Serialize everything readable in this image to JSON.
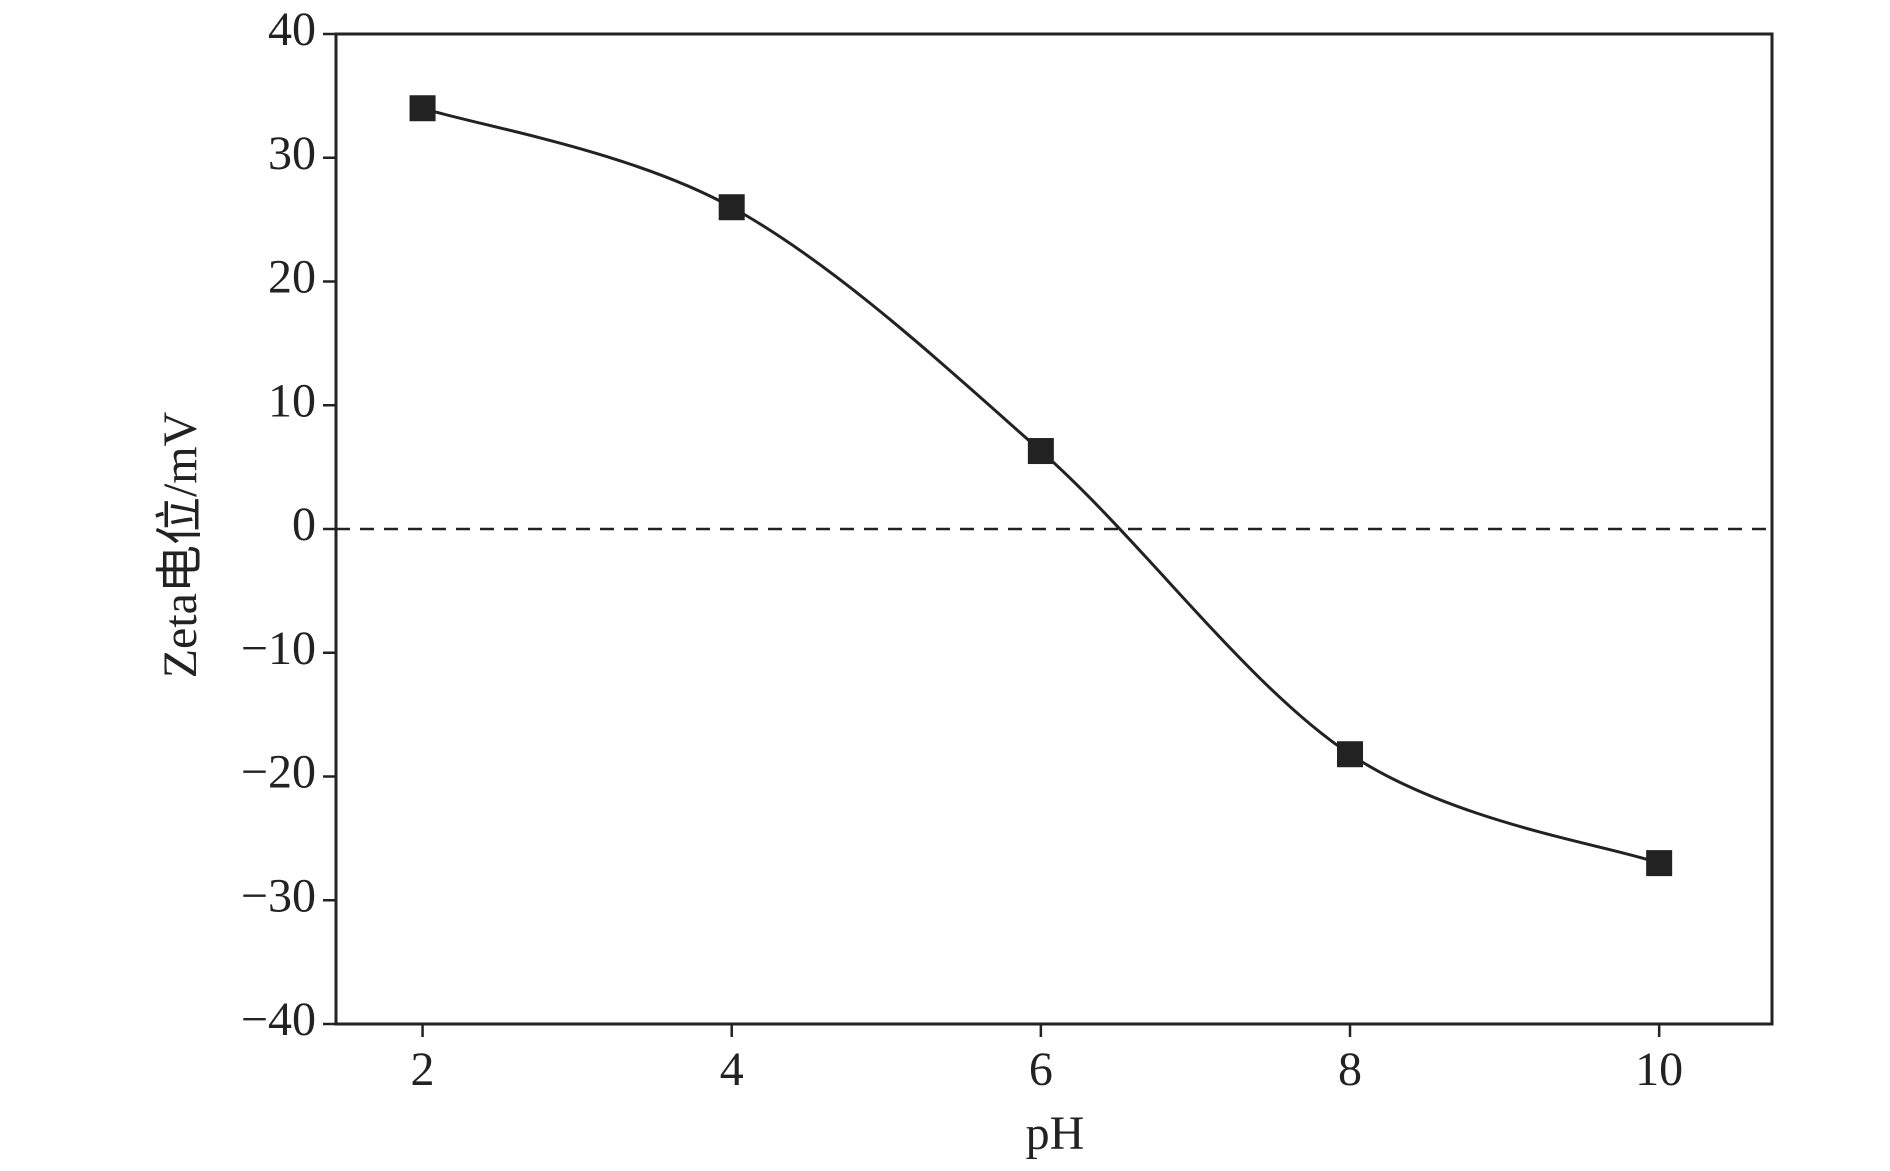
{
  "chart_data": {
    "type": "line",
    "x_label": "pH",
    "y_label": "Zeta电位/mV",
    "x": [
      2,
      4,
      6,
      8,
      10
    ],
    "series": [
      {
        "color": "#222222",
        "marker": "square",
        "smooth": true,
        "values": [
          34,
          26,
          6.3,
          -18.2,
          -27
        ]
      }
    ],
    "xlim": [
      1.44,
      10.73
    ],
    "xticks": [
      2,
      4,
      6,
      8,
      10
    ],
    "ylim": [
      -40,
      40
    ],
    "yticks": [
      {
        "value": -40,
        "label": "−40"
      },
      {
        "value": -30,
        "label": "−30"
      },
      {
        "value": -20,
        "label": "−20"
      },
      {
        "value": -10,
        "label": "−10"
      },
      0,
      10,
      20,
      30,
      40
    ],
    "reference_line": {
      "y": 0,
      "style": "dashed"
    },
    "grid": false
  }
}
